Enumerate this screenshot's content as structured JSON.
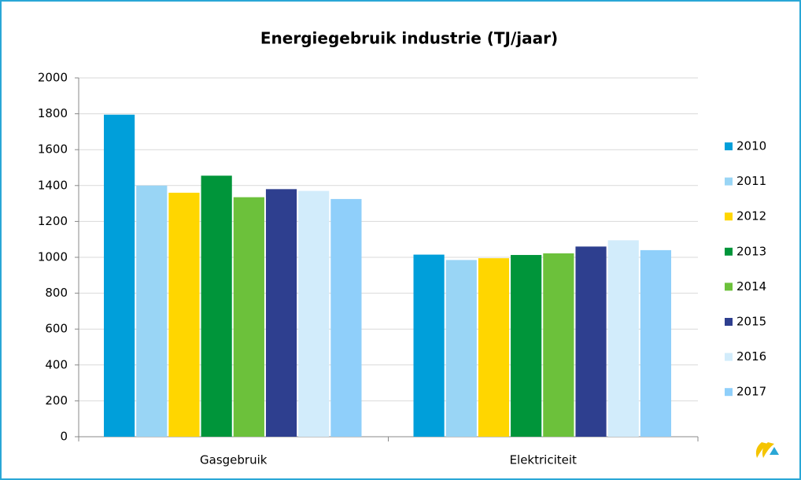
{
  "chart_data": {
    "type": "bar",
    "title": "Energiegebruik industrie  (TJ/jaar)",
    "categories": [
      "Gasgebruik",
      "Elektriciteit"
    ],
    "series": [
      {
        "name": "2010",
        "color": "#009fda",
        "values": [
          1795,
          1015
        ]
      },
      {
        "name": "2011",
        "color": "#99d5f5",
        "values": [
          1400,
          985
        ]
      },
      {
        "name": "2012",
        "color": "#ffd600",
        "values": [
          1360,
          995
        ]
      },
      {
        "name": "2013",
        "color": "#00953a",
        "values": [
          1455,
          1013
        ]
      },
      {
        "name": "2014",
        "color": "#6cc13b",
        "values": [
          1335,
          1022
        ]
      },
      {
        "name": "2015",
        "color": "#2e3f8f",
        "values": [
          1380,
          1060
        ]
      },
      {
        "name": "2016",
        "color": "#d2ecfb",
        "values": [
          1370,
          1095
        ]
      },
      {
        "name": "2017",
        "color": "#8fcffa",
        "values": [
          1325,
          1040
        ]
      }
    ],
    "ylim": [
      0,
      2000
    ],
    "yticks": [
      0,
      200,
      400,
      600,
      800,
      1000,
      1200,
      1400,
      1600,
      1800,
      2000
    ],
    "grid": true,
    "legend": "right"
  }
}
